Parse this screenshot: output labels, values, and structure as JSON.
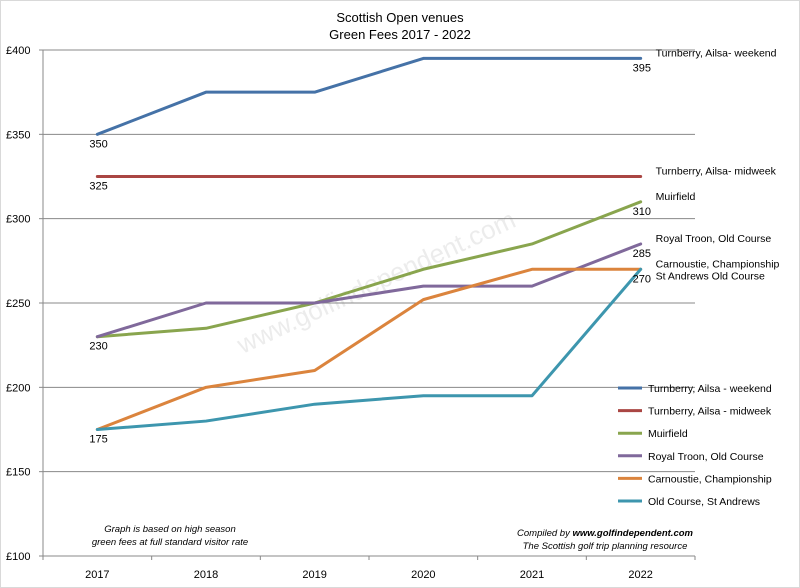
{
  "chart_data": {
    "type": "line",
    "title": "Scottish Open venues",
    "subtitle": "Green Fees 2017 - 2022",
    "xlabel": "",
    "ylabel": "",
    "categories": [
      "2017",
      "2018",
      "2019",
      "2020",
      "2021",
      "2022"
    ],
    "ylim": [
      100,
      400
    ],
    "yticks": [
      100,
      150,
      200,
      250,
      300,
      350,
      400
    ],
    "ytick_labels": [
      "£100",
      "£150",
      "£200",
      "£250",
      "£300",
      "£350",
      "£400"
    ],
    "grid": "horizontal",
    "legend_position": "right",
    "series": [
      {
        "name": "Turnberry, Ailsa - weekend",
        "color": "#4572A7",
        "values": [
          350,
          375,
          375,
          395,
          395,
          395
        ]
      },
      {
        "name": "Turnberry, Ailsa - midweek",
        "color": "#AA4643",
        "values": [
          325,
          325,
          325,
          325,
          325,
          325
        ]
      },
      {
        "name": "Muirfield",
        "color": "#89A54E",
        "values": [
          230,
          235,
          250,
          270,
          285,
          310
        ]
      },
      {
        "name": "Royal Troon, Old Course",
        "color": "#80699B",
        "values": [
          230,
          250,
          250,
          260,
          260,
          285
        ]
      },
      {
        "name": "Carnoustie, Championship",
        "color": "#DB843D",
        "values": [
          175,
          200,
          210,
          252,
          270,
          270
        ]
      },
      {
        "name": "Old Course, St Andrews",
        "color": "#3D96AE",
        "values": [
          175,
          180,
          190,
          195,
          195,
          270
        ]
      }
    ],
    "data_labels": [
      {
        "category": "2017",
        "value": 350,
        "text": "350"
      },
      {
        "category": "2017",
        "value": 325,
        "text": "325"
      },
      {
        "category": "2017",
        "value": 230,
        "text": "230"
      },
      {
        "category": "2017",
        "value": 175,
        "text": "175"
      },
      {
        "category": "2022",
        "value": 395,
        "text": "395"
      },
      {
        "category": "2022",
        "value": 310,
        "text": "310"
      },
      {
        "category": "2022",
        "value": 285,
        "text": "285"
      },
      {
        "category": "2022",
        "value": 270,
        "text": "270"
      }
    ],
    "line_end_labels": [
      {
        "text": "Turnberry, Ailsa- weekend",
        "value": 395
      },
      {
        "text": "Turnberry, Ailsa- midweek",
        "value": 325
      },
      {
        "text": "Muirfield",
        "value": 310
      },
      {
        "text": "Royal Troon, Old Course",
        "value": 285
      },
      {
        "text": "Carnoustie, Championship",
        "value": 270
      },
      {
        "text": "St Andrews Old Course",
        "value": 270
      }
    ],
    "watermark": "www.golfindependent.com",
    "notes": {
      "left": [
        "Graph is based on high season",
        "green fees at full standard visitor rate"
      ],
      "right_prefix": "Compiled by ",
      "right_site": "www.golfindependent.com",
      "right_line2": "The Scottish golf trip planning resource"
    }
  }
}
